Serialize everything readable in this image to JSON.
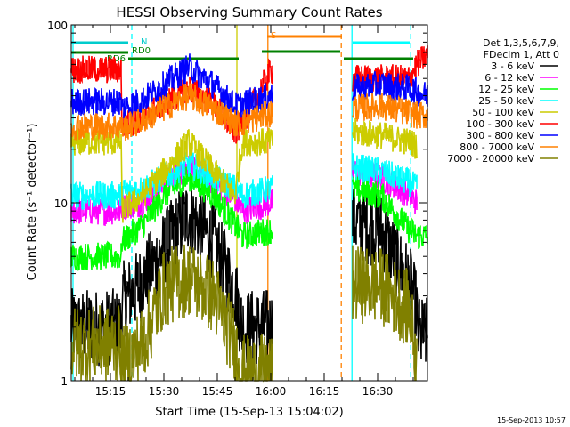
{
  "chart_data": {
    "type": "line",
    "title": "HESSI Observing Summary Count Rates",
    "xlabel": "Start Time (15-Sep-13 15:04:02)",
    "ylabel": "Count Rate (s⁻¹ detector⁻¹)",
    "yscale": "log",
    "ylim": [
      1,
      100
    ],
    "xlim_minutes": [
      0,
      100
    ],
    "x_ticks": [
      {
        "t": 11,
        "label": "15:15"
      },
      {
        "t": 26,
        "label": "15:30"
      },
      {
        "t": 41,
        "label": "15:45"
      },
      {
        "t": 56,
        "label": "16:00"
      },
      {
        "t": 71,
        "label": "16:15"
      },
      {
        "t": 86,
        "label": "16:30"
      }
    ],
    "y_ticks": [
      {
        "v": 1,
        "label": "1"
      },
      {
        "v": 10,
        "label": "10"
      },
      {
        "v": 100,
        "label": "100"
      }
    ],
    "legend_position": "right",
    "legend_header": [
      "Det 1,3,5,6,7,9,",
      "FDecim 1, Att 0"
    ],
    "series": [
      {
        "name": "3 - 6 keV",
        "color": "#000000",
        "data": [
          [
            0,
            2.0
          ],
          [
            14,
            2.0
          ],
          [
            14,
            2.8
          ],
          [
            18,
            3.2
          ],
          [
            26,
            5.5
          ],
          [
            33,
            8.8
          ],
          [
            40,
            6.0
          ],
          [
            46,
            3.2
          ],
          [
            48,
            2.0
          ],
          [
            56,
            2.0
          ],
          [
            79,
            8.0
          ],
          [
            87,
            7.0
          ],
          [
            95,
            3.5
          ],
          [
            97,
            2.5
          ],
          [
            97,
            1.8
          ],
          [
            100,
            1.8
          ]
        ]
      },
      {
        "name": "6 - 12 keV",
        "color": "#ff00ff",
        "data": [
          [
            0,
            9.0
          ],
          [
            14,
            9.0
          ],
          [
            14,
            9.5
          ],
          [
            20,
            10.0
          ],
          [
            26,
            13.0
          ],
          [
            33,
            16.0
          ],
          [
            40,
            13.0
          ],
          [
            46,
            10.5
          ],
          [
            48,
            9.0
          ],
          [
            56,
            10.0
          ],
          [
            79,
            15.0
          ],
          [
            87,
            14.0
          ],
          [
            95,
            11.0
          ],
          [
            97,
            10.0
          ]
        ]
      },
      {
        "name": "12 - 25 keV",
        "color": "#00ff00",
        "data": [
          [
            0,
            5.0
          ],
          [
            14,
            5.0
          ],
          [
            14,
            6.0
          ],
          [
            20,
            7.5
          ],
          [
            26,
            11.0
          ],
          [
            33,
            14.0
          ],
          [
            40,
            11.0
          ],
          [
            46,
            7.5
          ],
          [
            48,
            6.5
          ],
          [
            56,
            7.0
          ],
          [
            79,
            12.0
          ],
          [
            87,
            11.0
          ],
          [
            95,
            7.0
          ],
          [
            97,
            6.5
          ],
          [
            100,
            6.5
          ]
        ]
      },
      {
        "name": "25 - 50 keV",
        "color": "#00ffff",
        "data": [
          [
            0,
            11.0
          ],
          [
            14,
            11.0
          ],
          [
            14,
            11.5
          ],
          [
            20,
            12.0
          ],
          [
            26,
            14.0
          ],
          [
            33,
            16.5
          ],
          [
            40,
            14.0
          ],
          [
            46,
            12.0
          ],
          [
            48,
            11.0
          ],
          [
            56,
            12.0
          ],
          [
            79,
            16.0
          ],
          [
            87,
            15.0
          ],
          [
            95,
            13.0
          ],
          [
            97,
            12.0
          ]
        ]
      },
      {
        "name": "50 - 100 keV",
        "color": "#cccc00",
        "data": [
          [
            0,
            22.0
          ],
          [
            14,
            22.0
          ],
          [
            14,
            9.0
          ],
          [
            20,
            11.0
          ],
          [
            26,
            15.0
          ],
          [
            33,
            22.0
          ],
          [
            40,
            15.0
          ],
          [
            46,
            11.0
          ],
          [
            48,
            22.0
          ],
          [
            56,
            22.0
          ],
          [
            79,
            25.0
          ],
          [
            87,
            24.0
          ],
          [
            95,
            22.0
          ],
          [
            97,
            21.0
          ]
        ]
      },
      {
        "name": "100 - 300 keV",
        "color": "#ff0000",
        "data": [
          [
            0,
            56.0
          ],
          [
            14,
            56.0
          ],
          [
            14,
            27.0
          ],
          [
            20,
            30.0
          ],
          [
            26,
            36.0
          ],
          [
            33,
            44.0
          ],
          [
            40,
            36.0
          ],
          [
            46,
            25.0
          ],
          [
            48,
            28.0
          ],
          [
            56,
            55.0
          ],
          [
            79,
            50.0
          ],
          [
            87,
            50.0
          ],
          [
            95,
            50.0
          ],
          [
            97,
            60.0
          ],
          [
            100,
            68.0
          ]
        ]
      },
      {
        "name": "300 - 800 keV",
        "color": "#0000ff",
        "data": [
          [
            0,
            37.0
          ],
          [
            14,
            37.0
          ],
          [
            14,
            34.0
          ],
          [
            20,
            38.0
          ],
          [
            26,
            46.0
          ],
          [
            33,
            58.0
          ],
          [
            40,
            46.0
          ],
          [
            46,
            35.0
          ],
          [
            48,
            36.0
          ],
          [
            56,
            40.0
          ],
          [
            79,
            44.0
          ],
          [
            87,
            46.0
          ],
          [
            95,
            44.0
          ],
          [
            97,
            42.0
          ],
          [
            100,
            40.0
          ]
        ]
      },
      {
        "name": "800 - 7000 keV",
        "color": "#ff8000",
        "data": [
          [
            0,
            27.0
          ],
          [
            14,
            27.0
          ],
          [
            14,
            26.0
          ],
          [
            20,
            29.0
          ],
          [
            26,
            34.0
          ],
          [
            33,
            40.0
          ],
          [
            40,
            34.0
          ],
          [
            46,
            28.0
          ],
          [
            48,
            28.0
          ],
          [
            56,
            32.0
          ],
          [
            79,
            34.0
          ],
          [
            87,
            35.0
          ],
          [
            95,
            32.0
          ],
          [
            97,
            31.0
          ],
          [
            100,
            31.0
          ]
        ]
      },
      {
        "name": "7000 - 20000 keV",
        "color": "#808000",
        "data": [
          [
            0,
            1.6
          ],
          [
            14,
            1.6
          ],
          [
            14,
            1.2
          ],
          [
            20,
            1.6
          ],
          [
            26,
            3.3
          ],
          [
            33,
            3.8
          ],
          [
            40,
            3.0
          ],
          [
            46,
            1.6
          ],
          [
            48,
            1.1
          ],
          [
            56,
            1.1
          ],
          [
            79,
            3.5
          ],
          [
            87,
            3.4
          ],
          [
            95,
            2.5
          ],
          [
            97,
            1.2
          ]
        ]
      }
    ],
    "flags": [
      {
        "label": "RD6",
        "color": "#008000",
        "t0": 0,
        "t1": 15
      },
      {
        "label": "N",
        "color": "#00cccc",
        "t0": 0,
        "t1": 16
      },
      {
        "label": "RD0",
        "color": "#008000",
        "t0": 16,
        "t1": 76
      },
      {
        "label": "S",
        "color": "#ff8000",
        "t0": 55,
        "t1": 76
      },
      {
        "label": "",
        "color": "#00ffff",
        "t0": 79,
        "t1": 95
      }
    ],
    "vertical_markers": [
      {
        "t": 0.5,
        "color": "#00ffff",
        "style": "solid"
      },
      {
        "t": 17,
        "color": "#00ffff",
        "style": "dashed"
      },
      {
        "t": 46.5,
        "color": "#cccc00",
        "style": "solid"
      },
      {
        "t": 55.2,
        "color": "#ff8000",
        "style": "solid"
      },
      {
        "t": 75.8,
        "color": "#ff8000",
        "style": "dashed"
      },
      {
        "t": 78.8,
        "color": "#00ffff",
        "style": "solid"
      },
      {
        "t": 95.3,
        "color": "#00ffff",
        "style": "dashed"
      }
    ]
  },
  "footer": {
    "timestamp": "15-Sep-2013 10:57"
  }
}
